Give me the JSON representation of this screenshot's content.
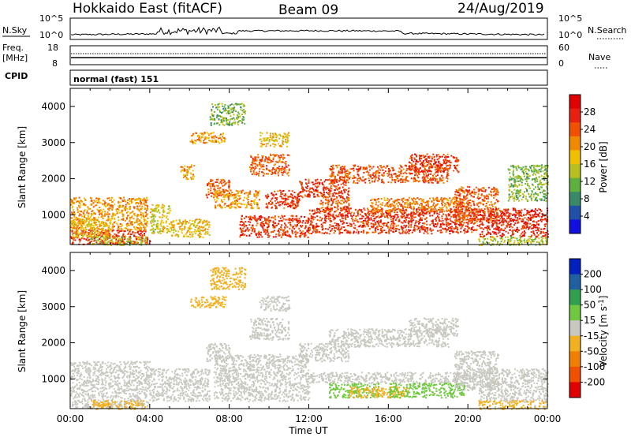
{
  "header": {
    "station": "Hokkaido East (fitACF)",
    "beam": "Beam 09",
    "date": "24/Aug/2019"
  },
  "strip": {
    "nsky_label": "N.Sky",
    "nsky_ticks": [
      "10^5",
      "10^0"
    ],
    "nsearch_label": "N.Search",
    "nsearch_ticks": [
      "10^5",
      "10^0"
    ],
    "freq_label": "Freq.",
    "freq_unit": "[MHz]",
    "freq_ticks": [
      "18",
      "8"
    ],
    "nave_label": "Nave",
    "nave_ticks": [
      "60",
      "0"
    ],
    "cpid_label": "CPID",
    "cpid_text": "normal (fast) 151"
  },
  "chart_data": [
    {
      "type": "heatmap",
      "name": "power",
      "ylabel": "Slant Range [km]",
      "xlabel": "",
      "xlim": [
        0,
        24
      ],
      "ylim": [
        180,
        4500
      ],
      "y_ticks": [
        "4000",
        "3000",
        "2000",
        "1000"
      ],
      "colorbar_label": "Power [dB]",
      "colorbar_ticks": [
        "28",
        "24",
        "20",
        "16",
        "12",
        "8",
        "4"
      ],
      "colorbar_colors": [
        "#1010e0",
        "#2050a8",
        "#3a8a6a",
        "#60b040",
        "#b8c020",
        "#f0c000",
        "#f08a00",
        "#f05000",
        "#e82010",
        "#e00000"
      ],
      "regions": [
        {
          "t": [
            0.0,
            4.0
          ],
          "r": [
            200,
            600
          ],
          "level": 26
        },
        {
          "t": [
            0.0,
            3.9
          ],
          "r": [
            600,
            1500
          ],
          "level": 20
        },
        {
          "t": [
            0.0,
            2.0
          ],
          "r": [
            400,
            900
          ],
          "level": 18
        },
        {
          "t": [
            1.0,
            3.8
          ],
          "r": [
            180,
            420
          ],
          "level": 14
        },
        {
          "t": [
            4.0,
            5.0
          ],
          "r": [
            500,
            1300
          ],
          "level": 16
        },
        {
          "t": [
            5.0,
            7.0
          ],
          "r": [
            400,
            900
          ],
          "level": 18
        },
        {
          "t": [
            6.0,
            7.8
          ],
          "r": [
            3000,
            3300
          ],
          "level": 20
        },
        {
          "t": [
            7.0,
            8.8
          ],
          "r": [
            3500,
            4100
          ],
          "level": 12
        },
        {
          "t": [
            5.5,
            6.2
          ],
          "r": [
            2000,
            2400
          ],
          "level": 20
        },
        {
          "t": [
            6.8,
            8.0
          ],
          "r": [
            1500,
            2000
          ],
          "level": 24
        },
        {
          "t": [
            7.2,
            9.5
          ],
          "r": [
            1200,
            1700
          ],
          "level": 20
        },
        {
          "t": [
            9.0,
            11.0
          ],
          "r": [
            2100,
            2700
          ],
          "level": 24
        },
        {
          "t": [
            9.5,
            11.0
          ],
          "r": [
            2900,
            3300
          ],
          "level": 18
        },
        {
          "t": [
            9.8,
            11.5
          ],
          "r": [
            1200,
            1700
          ],
          "level": 26
        },
        {
          "t": [
            8.5,
            12.0
          ],
          "r": [
            400,
            1000
          ],
          "level": 26
        },
        {
          "t": [
            11.5,
            14.0
          ],
          "r": [
            1500,
            2000
          ],
          "level": 26
        },
        {
          "t": [
            12.0,
            20.5
          ],
          "r": [
            500,
            1200
          ],
          "level": 26
        },
        {
          "t": [
            12.5,
            14.0
          ],
          "r": [
            1100,
            1500
          ],
          "level": 24
        },
        {
          "t": [
            13.0,
            19.0
          ],
          "r": [
            1900,
            2400
          ],
          "level": 24
        },
        {
          "t": [
            15.0,
            20.0
          ],
          "r": [
            1100,
            1500
          ],
          "level": 22
        },
        {
          "t": [
            17.0,
            19.5
          ],
          "r": [
            2200,
            2700
          ],
          "level": 26
        },
        {
          "t": [
            19.3,
            21.5
          ],
          "r": [
            800,
            1800
          ],
          "level": 24
        },
        {
          "t": [
            20.5,
            24.0
          ],
          "r": [
            400,
            1200
          ],
          "level": 27
        },
        {
          "t": [
            20.5,
            24.0
          ],
          "r": [
            180,
            420
          ],
          "level": 14
        },
        {
          "t": [
            22.0,
            24.0
          ],
          "r": [
            1400,
            2400
          ],
          "level": 12
        }
      ]
    },
    {
      "type": "heatmap",
      "name": "velocity",
      "ylabel": "Slant Range [km]",
      "xlabel": "Time UT",
      "xlim": [
        0,
        24
      ],
      "ylim": [
        180,
        4500
      ],
      "x_ticks": [
        "00:00",
        "04:00",
        "08:00",
        "12:00",
        "16:00",
        "20:00",
        "00:00"
      ],
      "y_ticks": [
        "4000",
        "3000",
        "2000",
        "1000"
      ],
      "colorbar_label": "Velocity [m s^-1]",
      "colorbar_ticks": [
        "200",
        "100",
        "50",
        "15",
        "-15",
        "-50",
        "-100",
        "-200"
      ],
      "colorbar_colors": [
        "#0020c0",
        "#2060a0",
        "#30a050",
        "#70c840",
        "#c8c8c0",
        "#f0b020",
        "#f08000",
        "#f05000",
        "#e00000"
      ],
      "regions": [
        {
          "t": [
            0.0,
            4.0
          ],
          "r": [
            200,
            1500
          ],
          "level": 0
        },
        {
          "t": [
            1.0,
            3.8
          ],
          "r": [
            180,
            420
          ],
          "level": -30
        },
        {
          "t": [
            4.0,
            7.0
          ],
          "r": [
            400,
            1300
          ],
          "level": 0
        },
        {
          "t": [
            6.0,
            7.8
          ],
          "r": [
            3000,
            3300
          ],
          "level": -30
        },
        {
          "t": [
            7.0,
            8.8
          ],
          "r": [
            3500,
            4100
          ],
          "level": -25
        },
        {
          "t": [
            6.8,
            8.0
          ],
          "r": [
            1500,
            2000
          ],
          "level": 0
        },
        {
          "t": [
            7.2,
            12.0
          ],
          "r": [
            400,
            1700
          ],
          "level": 0
        },
        {
          "t": [
            9.0,
            11.0
          ],
          "r": [
            2100,
            2700
          ],
          "level": 0
        },
        {
          "t": [
            9.5,
            11.0
          ],
          "r": [
            2900,
            3300
          ],
          "level": 0
        },
        {
          "t": [
            11.5,
            14.0
          ],
          "r": [
            1500,
            2000
          ],
          "level": 0
        },
        {
          "t": [
            12.0,
            20.5
          ],
          "r": [
            900,
            1200
          ],
          "level": 0
        },
        {
          "t": [
            13.0,
            19.0
          ],
          "r": [
            1900,
            2400
          ],
          "level": 0
        },
        {
          "t": [
            17.0,
            19.5
          ],
          "r": [
            2200,
            2700
          ],
          "level": 0
        },
        {
          "t": [
            13.0,
            15.5
          ],
          "r": [
            500,
            900
          ],
          "level": 35
        },
        {
          "t": [
            14.0,
            17.0
          ],
          "r": [
            500,
            800
          ],
          "level": -40
        },
        {
          "t": [
            16.0,
            19.8
          ],
          "r": [
            500,
            900
          ],
          "level": 35
        },
        {
          "t": [
            19.3,
            21.5
          ],
          "r": [
            700,
            1800
          ],
          "level": 0
        },
        {
          "t": [
            20.5,
            24.0
          ],
          "r": [
            400,
            1300
          ],
          "level": 0
        },
        {
          "t": [
            20.5,
            24.0
          ],
          "r": [
            180,
            420
          ],
          "level": -20
        }
      ]
    }
  ]
}
